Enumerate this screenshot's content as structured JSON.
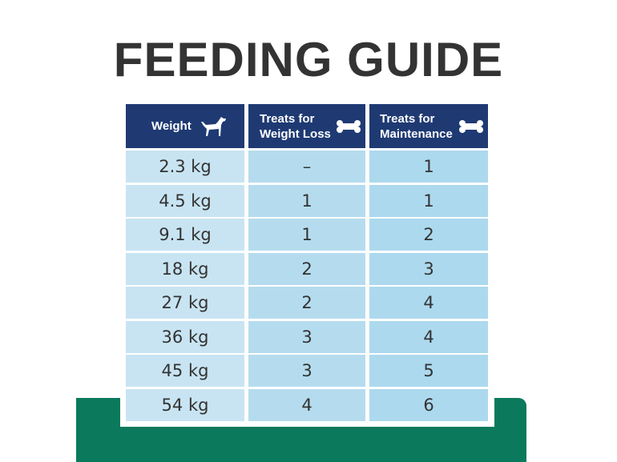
{
  "title": "FEEDING GUIDE",
  "table": {
    "headers": [
      "Weight",
      "Treats for Weight Loss",
      "Treats for Maintenance"
    ],
    "rows": [
      [
        "2.3 kg",
        "–",
        1
      ],
      [
        "4.5 kg",
        1,
        1
      ],
      [
        "9.1 kg",
        1,
        2
      ],
      [
        "18 kg",
        2,
        3
      ],
      [
        "27 kg",
        2,
        4
      ],
      [
        "36 kg",
        3,
        4
      ],
      [
        "45 kg",
        3,
        5
      ],
      [
        "54 kg",
        4,
        6
      ]
    ]
  }
}
